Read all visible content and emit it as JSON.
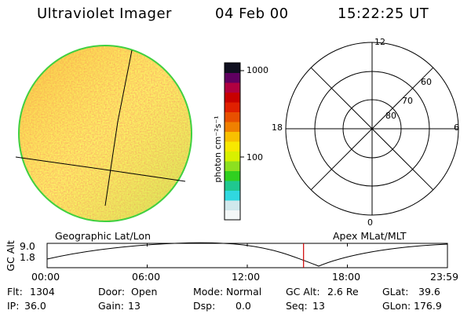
{
  "header": {
    "title": "Ultraviolet Imager",
    "date": "04 Feb 00",
    "time": "15:22:25 UT"
  },
  "earth_image": {
    "label": "Geographic Lat/Lon"
  },
  "colorbar": {
    "unit_label": "photon cm⁻²s⁻¹",
    "ticks": [
      "1000",
      "100"
    ],
    "colors": [
      "#f4f8f8",
      "#d0e8ec",
      "#30d8e0",
      "#20c890",
      "#30d020",
      "#8ce020",
      "#d8f000",
      "#f8e800",
      "#f8c000",
      "#f08000",
      "#e85000",
      "#e02000",
      "#c80000",
      "#b00040",
      "#600060",
      "#101020"
    ]
  },
  "polar_plot": {
    "label": "Apex MLat/MLT",
    "mlt_labels": {
      "top": "12",
      "bottom": "0",
      "left": "18",
      "right": "6"
    },
    "lat_labels": [
      "60",
      "70",
      "80"
    ]
  },
  "altitude_strip": {
    "ylabel": "GC Alt",
    "y_ticks": [
      "9.0",
      "1.8"
    ],
    "x_ticks": [
      "00:00",
      "06:00",
      "12:00",
      "18:00",
      "23:59"
    ],
    "current_time_marker": "15:22:25",
    "marker_color": "#d00000"
  },
  "status": {
    "flt_label": "Flt:",
    "flt": "1304",
    "ip_label": "IP:",
    "ip": "36.0",
    "door_label": "Door:",
    "door": "Open",
    "gain_label": "Gain:",
    "gain": "13",
    "mode_label": "Mode:",
    "mode": "Normal",
    "dsp_label": "Dsp:",
    "dsp": "0.0",
    "gcalt_label": "GC Alt:",
    "gcalt": "2.6 Re",
    "seq_label": "Seq:",
    "seq": "13",
    "glat_label": "GLat:",
    "glat": "39.6",
    "glon_label": "GLon:",
    "glon": "176.9"
  }
}
